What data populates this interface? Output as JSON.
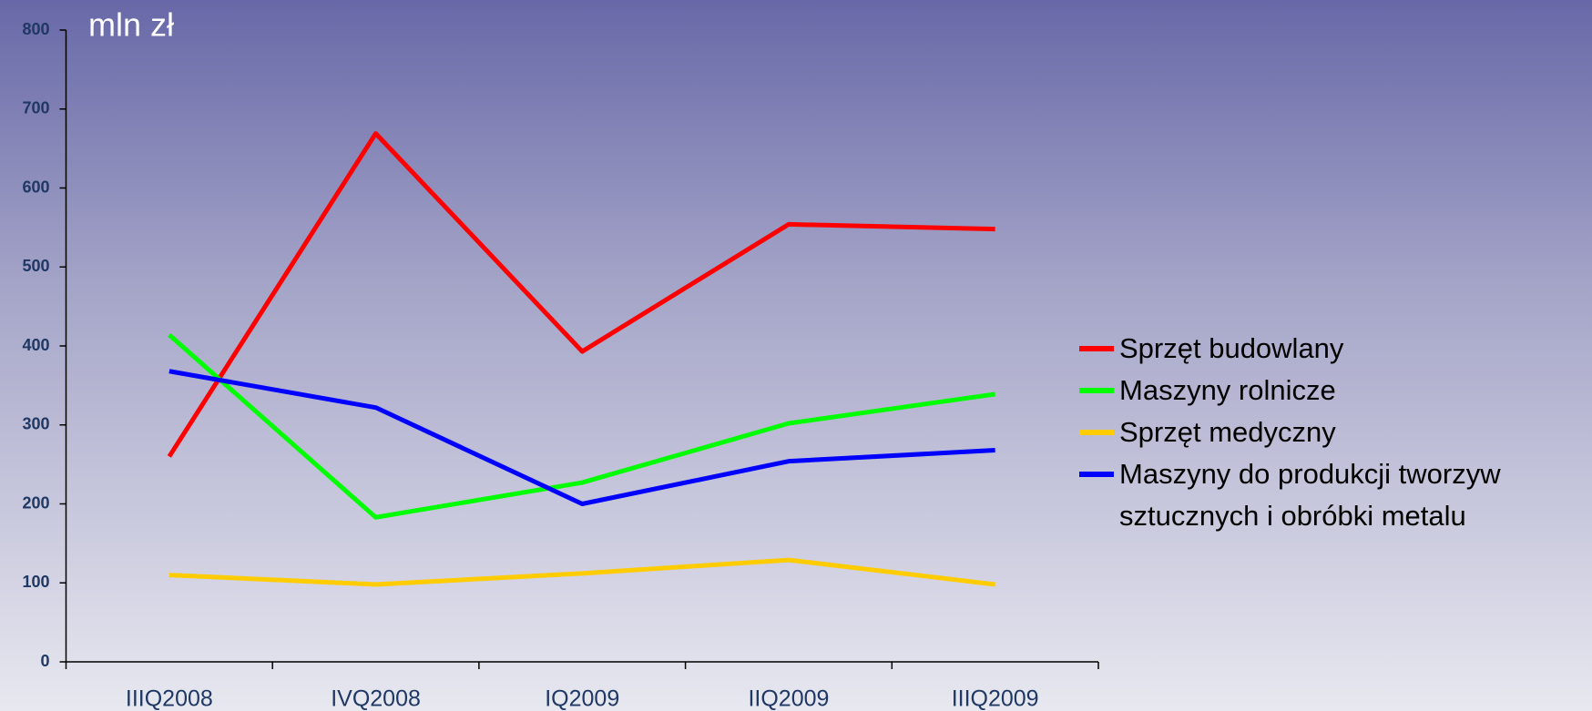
{
  "chart_data": {
    "type": "line",
    "title": "mln zł",
    "categories": [
      "IIIQ2008",
      "IVQ2008",
      "IQ2009",
      "IIQ2009",
      "IIIQ2009"
    ],
    "series": [
      {
        "name": "Sprzęt budowlany",
        "color": "#ff0000",
        "values": [
          260,
          669,
          393,
          554,
          548
        ]
      },
      {
        "name": "Maszyny rolnicze",
        "color": "#00ff00",
        "values": [
          414,
          183,
          227,
          302,
          339
        ]
      },
      {
        "name": "Sprzęt medyczny",
        "color": "#ffcc00",
        "values": [
          110,
          98,
          112,
          129,
          98
        ]
      },
      {
        "name": "Maszyny do produkcji tworzyw sztucznych i obróbki metalu",
        "color": "#0000ff",
        "values": [
          368,
          322,
          200,
          254,
          268
        ]
      }
    ],
    "ylim": [
      0,
      800
    ],
    "yticks": [
      0,
      100,
      200,
      300,
      400,
      500,
      600,
      700,
      800
    ],
    "grid": false,
    "legend": "right"
  }
}
